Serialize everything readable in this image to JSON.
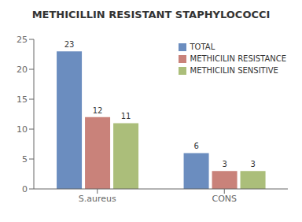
{
  "chart_data": {
    "type": "bar",
    "title": "METHICILLIN RESISTANT STAPHYLOCOCCI",
    "categories": [
      "S.aureus",
      "CONS"
    ],
    "series": [
      {
        "name": "TOTAL",
        "values": [
          23,
          6
        ],
        "color": "#6B8DBF"
      },
      {
        "name": "METHICILIN RESISTANCE",
        "values": [
          12,
          3
        ],
        "color": "#C9827A"
      },
      {
        "name": "METHICILIN SENSITIVE",
        "values": [
          11,
          3
        ],
        "color": "#ABBE7A"
      }
    ],
    "ylim": [
      0,
      25
    ],
    "yticks": [
      0,
      5,
      10,
      15,
      20,
      25
    ],
    "grid": false,
    "legend": "upper right",
    "data_labels": true
  }
}
